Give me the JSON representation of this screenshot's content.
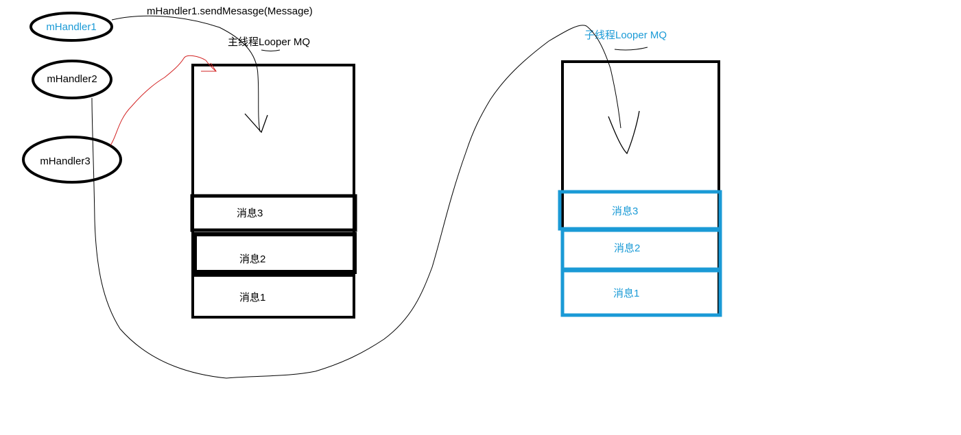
{
  "colors": {
    "ink": "#000000",
    "blue": "#1a9ad6",
    "red": "#d22020",
    "background": "#ffffff"
  },
  "annotation": "mHandler1.sendMesasge(Message)",
  "handlers": [
    {
      "label": "mHandler1",
      "color": "blue"
    },
    {
      "label": "mHandler2",
      "color": "black"
    },
    {
      "label": "mHandler3",
      "color": "black"
    }
  ],
  "main_queue": {
    "title": "主线程Looper MQ",
    "messages": [
      "消息3",
      "消息2",
      "消息1"
    ]
  },
  "sub_queue": {
    "title": "子线程Looper   MQ",
    "messages": [
      "消息3",
      "消息2",
      "消息1"
    ]
  }
}
